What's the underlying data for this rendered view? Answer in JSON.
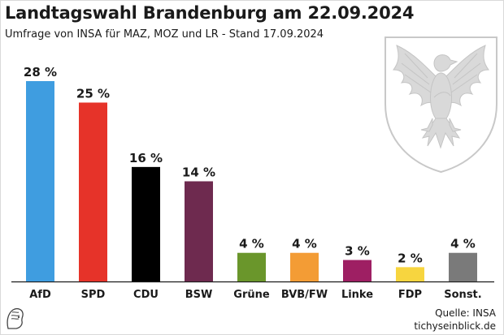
{
  "title": "Landtagswahl Brandenburg am 22.09.2024",
  "subtitle": "Umfrage von INSA für MAZ, MOZ und LR - Stand 17.09.2024",
  "source_line": "Quelle: INSA",
  "site": "tichyseinblick.de",
  "chart_data": {
    "type": "bar",
    "title": "Landtagswahl Brandenburg am 22.09.2024",
    "categories": [
      "AfD",
      "SPD",
      "CDU",
      "BSW",
      "Grüne",
      "BVB/FW",
      "Linke",
      "FDP",
      "Sonst."
    ],
    "values": [
      28,
      25,
      16,
      14,
      4,
      4,
      3,
      2,
      4
    ],
    "labels": [
      "28 %",
      "25 %",
      "16 %",
      "14 %",
      "4 %",
      "4 %",
      "3 %",
      "2 %",
      "4 %"
    ],
    "colors": [
      "#3f9de0",
      "#e63329",
      "#000000",
      "#6e2a4f",
      "#6a962b",
      "#f39c35",
      "#9e1f63",
      "#f7d53f",
      "#7a7a7a"
    ],
    "xlabel": "",
    "ylabel": "",
    "ylim": [
      0,
      28
    ],
    "grid": false
  }
}
